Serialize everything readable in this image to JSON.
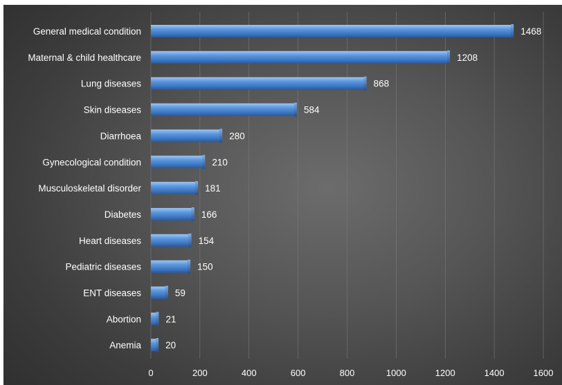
{
  "chart_data": {
    "type": "bar",
    "orientation": "horizontal",
    "categories": [
      "General medical condition",
      "Maternal & child healthcare",
      "Lung diseases",
      "Skin diseases",
      "Diarrhoea",
      "Gynecological condition",
      "Musculoskeletal disorder",
      "Diabetes",
      "Heart diseases",
      "Pediatric diseases",
      "ENT diseases",
      "Abortion",
      "Anemia"
    ],
    "values": [
      1468,
      1208,
      868,
      584,
      280,
      210,
      181,
      166,
      154,
      150,
      59,
      21,
      20
    ],
    "value_labels": [
      "1468",
      "1208",
      "868",
      "584",
      "280",
      "210",
      "181",
      "166",
      "154",
      "150",
      "59",
      "21",
      "20"
    ],
    "xlim": [
      0,
      1600
    ],
    "xticks": [
      0,
      200,
      400,
      600,
      800,
      1000,
      1200,
      1400,
      1600
    ],
    "xtick_labels": [
      "0",
      "200",
      "400",
      "600",
      "800",
      "1000",
      "1200",
      "1400",
      "1600"
    ],
    "title": "",
    "xlabel": "",
    "ylabel": "",
    "grid": "vertical",
    "legend": "none",
    "colors": {
      "bar": "#4a86d0",
      "bar_light": "#8fbcf0",
      "bar_dark": "#2a5a9e",
      "background": "#555555",
      "text": "#ffffff",
      "grid": "#7a7a7a"
    }
  }
}
